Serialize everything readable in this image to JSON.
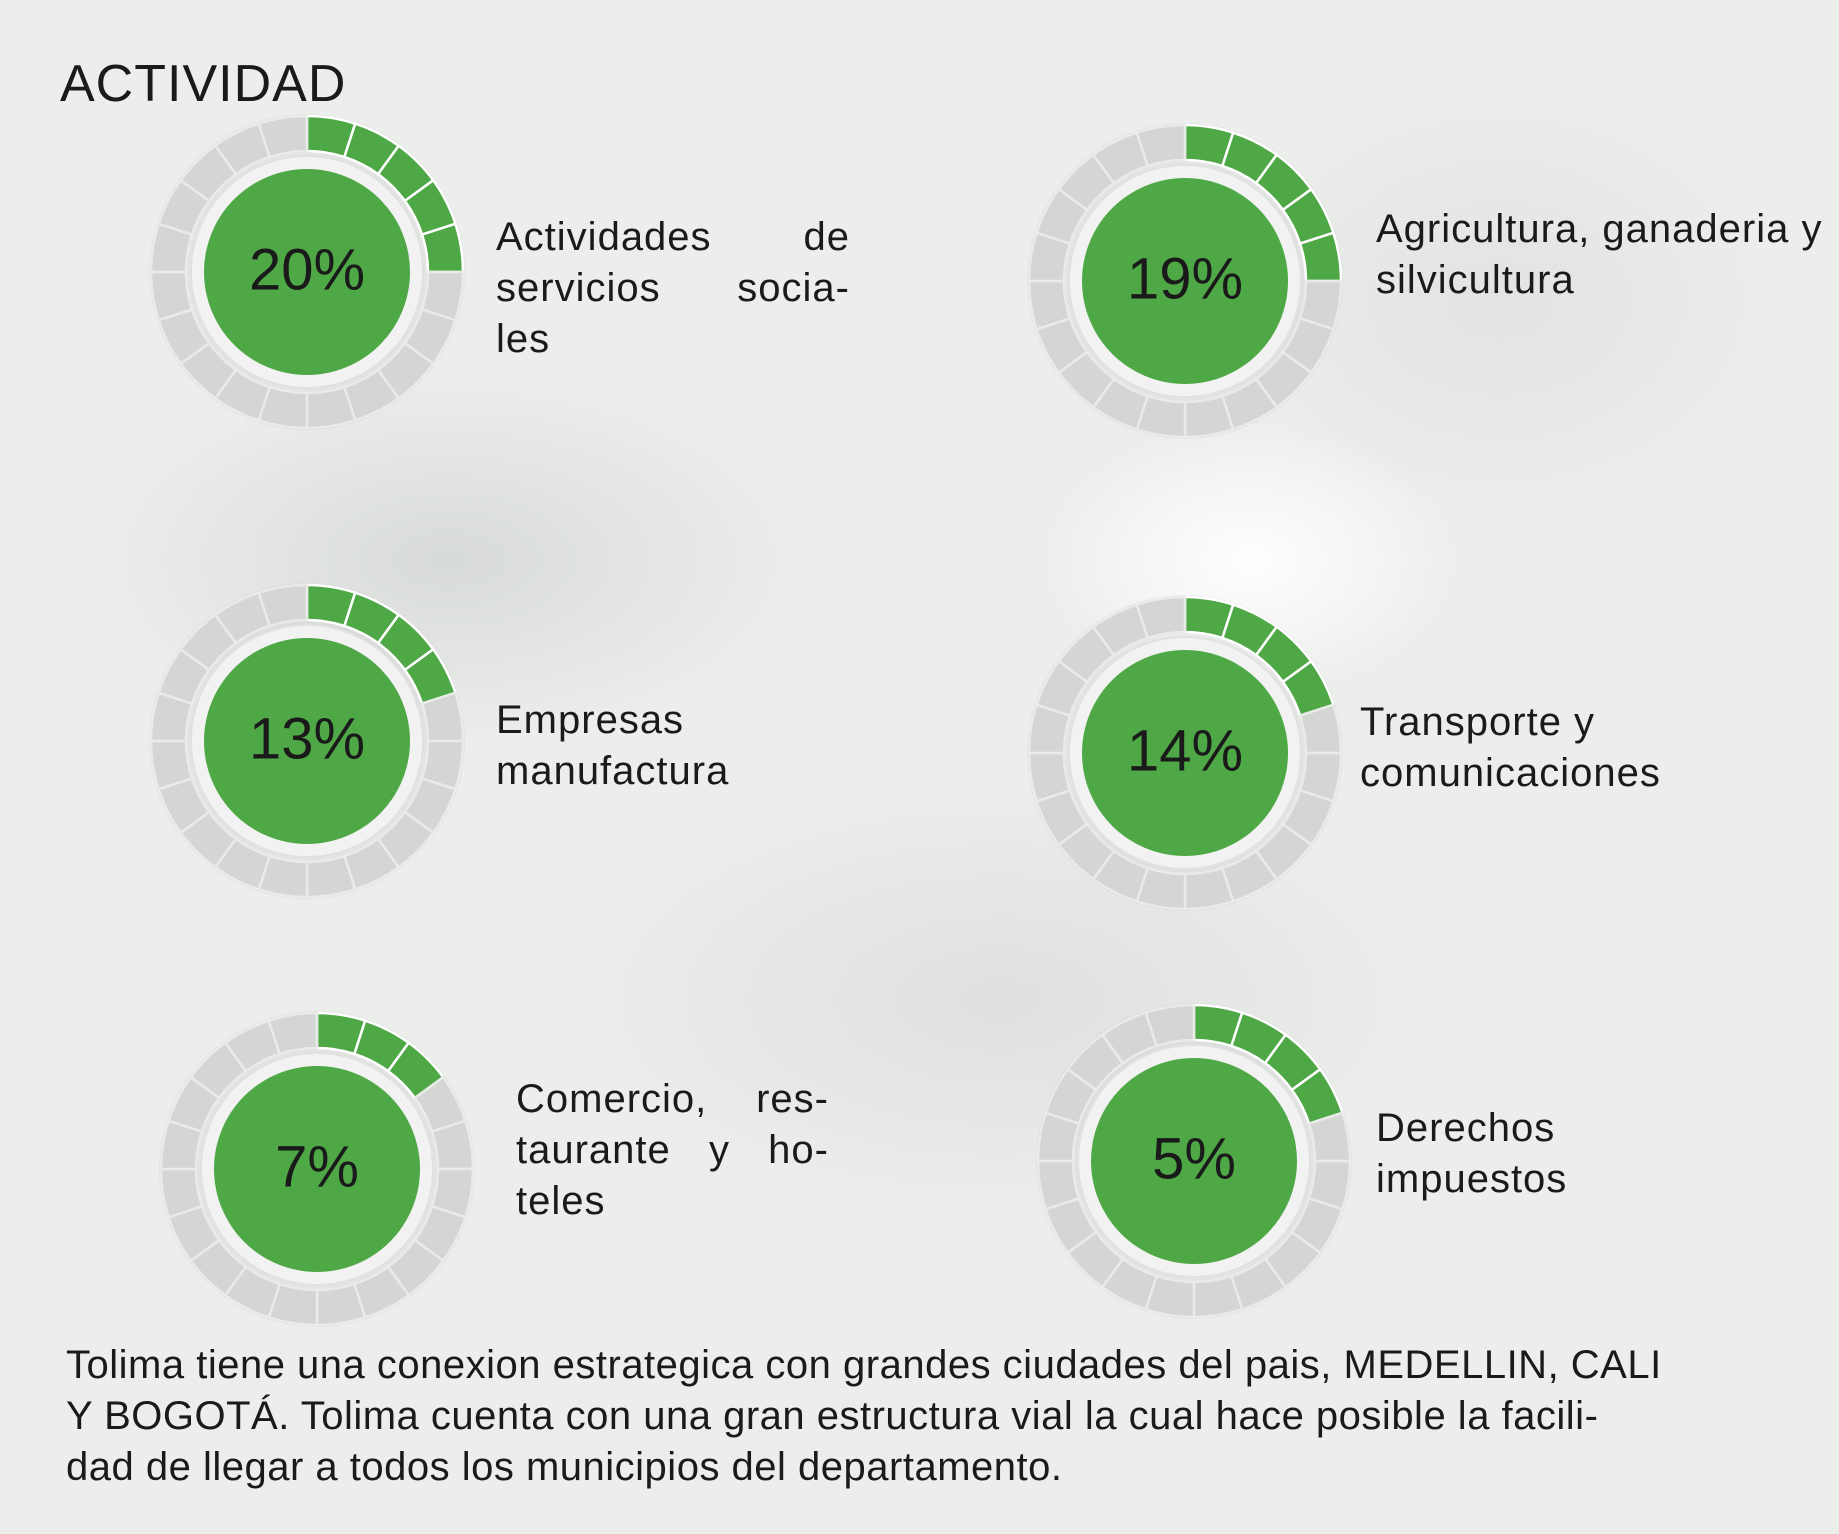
{
  "header": {
    "title": "ACTIVIDAD"
  },
  "items": [
    {
      "value": "20%",
      "label_lines": [
        "Actividades de",
        "servicios socia-",
        "les"
      ]
    },
    {
      "value": "19%",
      "label_lines": [
        "Agricultura, ganaderia y",
        "silvicultura"
      ]
    },
    {
      "value": "13%",
      "label_lines": [
        "Empresas",
        "manufactura"
      ]
    },
    {
      "value": "14%",
      "label_lines": [
        "Transporte y",
        "comunicaciones"
      ]
    },
    {
      "value": "7%",
      "label_lines": [
        "Comercio, res-",
        "taurante y ho-",
        "teles"
      ]
    },
    {
      "value": "5%",
      "label_lines": [
        "Derechos",
        "impuestos"
      ]
    }
  ],
  "paragraph": {
    "lines": [
      "Tolima tiene una conexion estrategica con grandes ciudades del pais, MEDELLIN, CALI",
      "Y BOGOTÁ. Tolima cuenta con una gran estructura vial la cual hace posible la facili-",
      "dad de llegar a todos los municipios del departamento."
    ]
  }
}
